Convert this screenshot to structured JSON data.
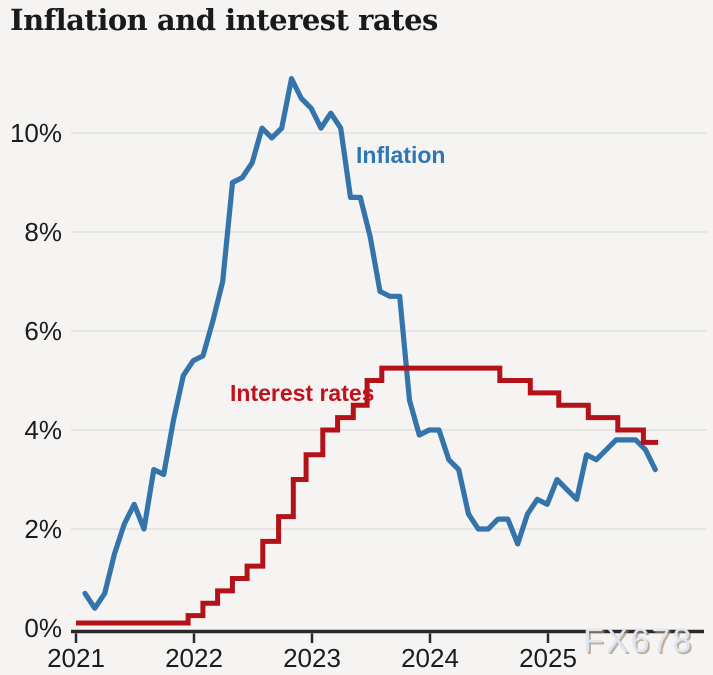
{
  "title": "Inflation and interest rates",
  "watermark": {
    "text": "FX678"
  },
  "colors": {
    "inflation_line": "#3474ab",
    "inflation_label": "#2e76b4",
    "rate_line": "#b31219",
    "rate_label": "#c1121c",
    "gridline": "#dcdcda",
    "axis": "#2a2a2a",
    "text": "#1c1c1c",
    "background": "#f5f4f2",
    "watermark_fill": "#dde7f3"
  },
  "chart_data": {
    "type": "line",
    "title": "Inflation and interest rates",
    "x_axis": {
      "tick_labels": [
        "2021",
        "2022",
        "2023",
        "2024",
        "2025"
      ],
      "unit": "year",
      "data_start": "2021-01",
      "data_frequency": "monthly"
    },
    "y_axis": {
      "tick_labels": [
        "0%",
        "2%",
        "4%",
        "6%",
        "8%",
        "10%"
      ],
      "tick_values": [
        0,
        2,
        4,
        6,
        8,
        10
      ],
      "ylim": [
        0,
        11.6
      ],
      "grid": true,
      "unit": "percent"
    },
    "series": [
      {
        "name": "Inflation",
        "style": "line",
        "x_start_month": 0,
        "values": [
          0.7,
          0.4,
          0.7,
          1.5,
          2.1,
          2.5,
          2.0,
          3.2,
          3.1,
          4.2,
          5.1,
          5.4,
          5.5,
          6.2,
          7.0,
          9.0,
          9.1,
          9.4,
          10.1,
          9.9,
          10.1,
          11.1,
          10.7,
          10.5,
          10.1,
          10.4,
          10.1,
          8.7,
          8.7,
          7.9,
          6.8,
          6.7,
          6.7,
          4.6,
          3.9,
          4.0,
          4.0,
          3.4,
          3.2,
          2.3,
          2.0,
          2.0,
          2.2,
          2.2,
          1.7,
          2.3,
          2.6,
          2.5,
          3.0,
          2.8,
          2.6,
          3.5,
          3.4,
          3.6,
          3.8,
          3.8,
          3.8,
          3.6,
          3.2
        ]
      },
      {
        "name": "Interest rates",
        "style": "step",
        "steps_month_rate": [
          [
            0,
            0.1
          ],
          [
            11.4,
            0.25
          ],
          [
            12.9,
            0.5
          ],
          [
            14.4,
            0.75
          ],
          [
            15.9,
            1.0
          ],
          [
            17.4,
            1.25
          ],
          [
            19.0,
            1.75
          ],
          [
            20.6,
            2.25
          ],
          [
            22.1,
            3.0
          ],
          [
            23.4,
            3.5
          ],
          [
            25.1,
            4.0
          ],
          [
            26.6,
            4.25
          ],
          [
            28.2,
            4.5
          ],
          [
            29.6,
            5.0
          ],
          [
            31.1,
            5.25
          ],
          [
            43.1,
            5.0
          ],
          [
            46.2,
            4.75
          ],
          [
            49.1,
            4.5
          ],
          [
            52.1,
            4.25
          ],
          [
            55.1,
            4.0
          ],
          [
            57.7,
            3.75
          ]
        ],
        "end_month": 59.2
      }
    ],
    "series_labels": {
      "inflation": "Inflation",
      "interest_rates": "Interest rates"
    },
    "legend_position": "inline-annotations"
  }
}
